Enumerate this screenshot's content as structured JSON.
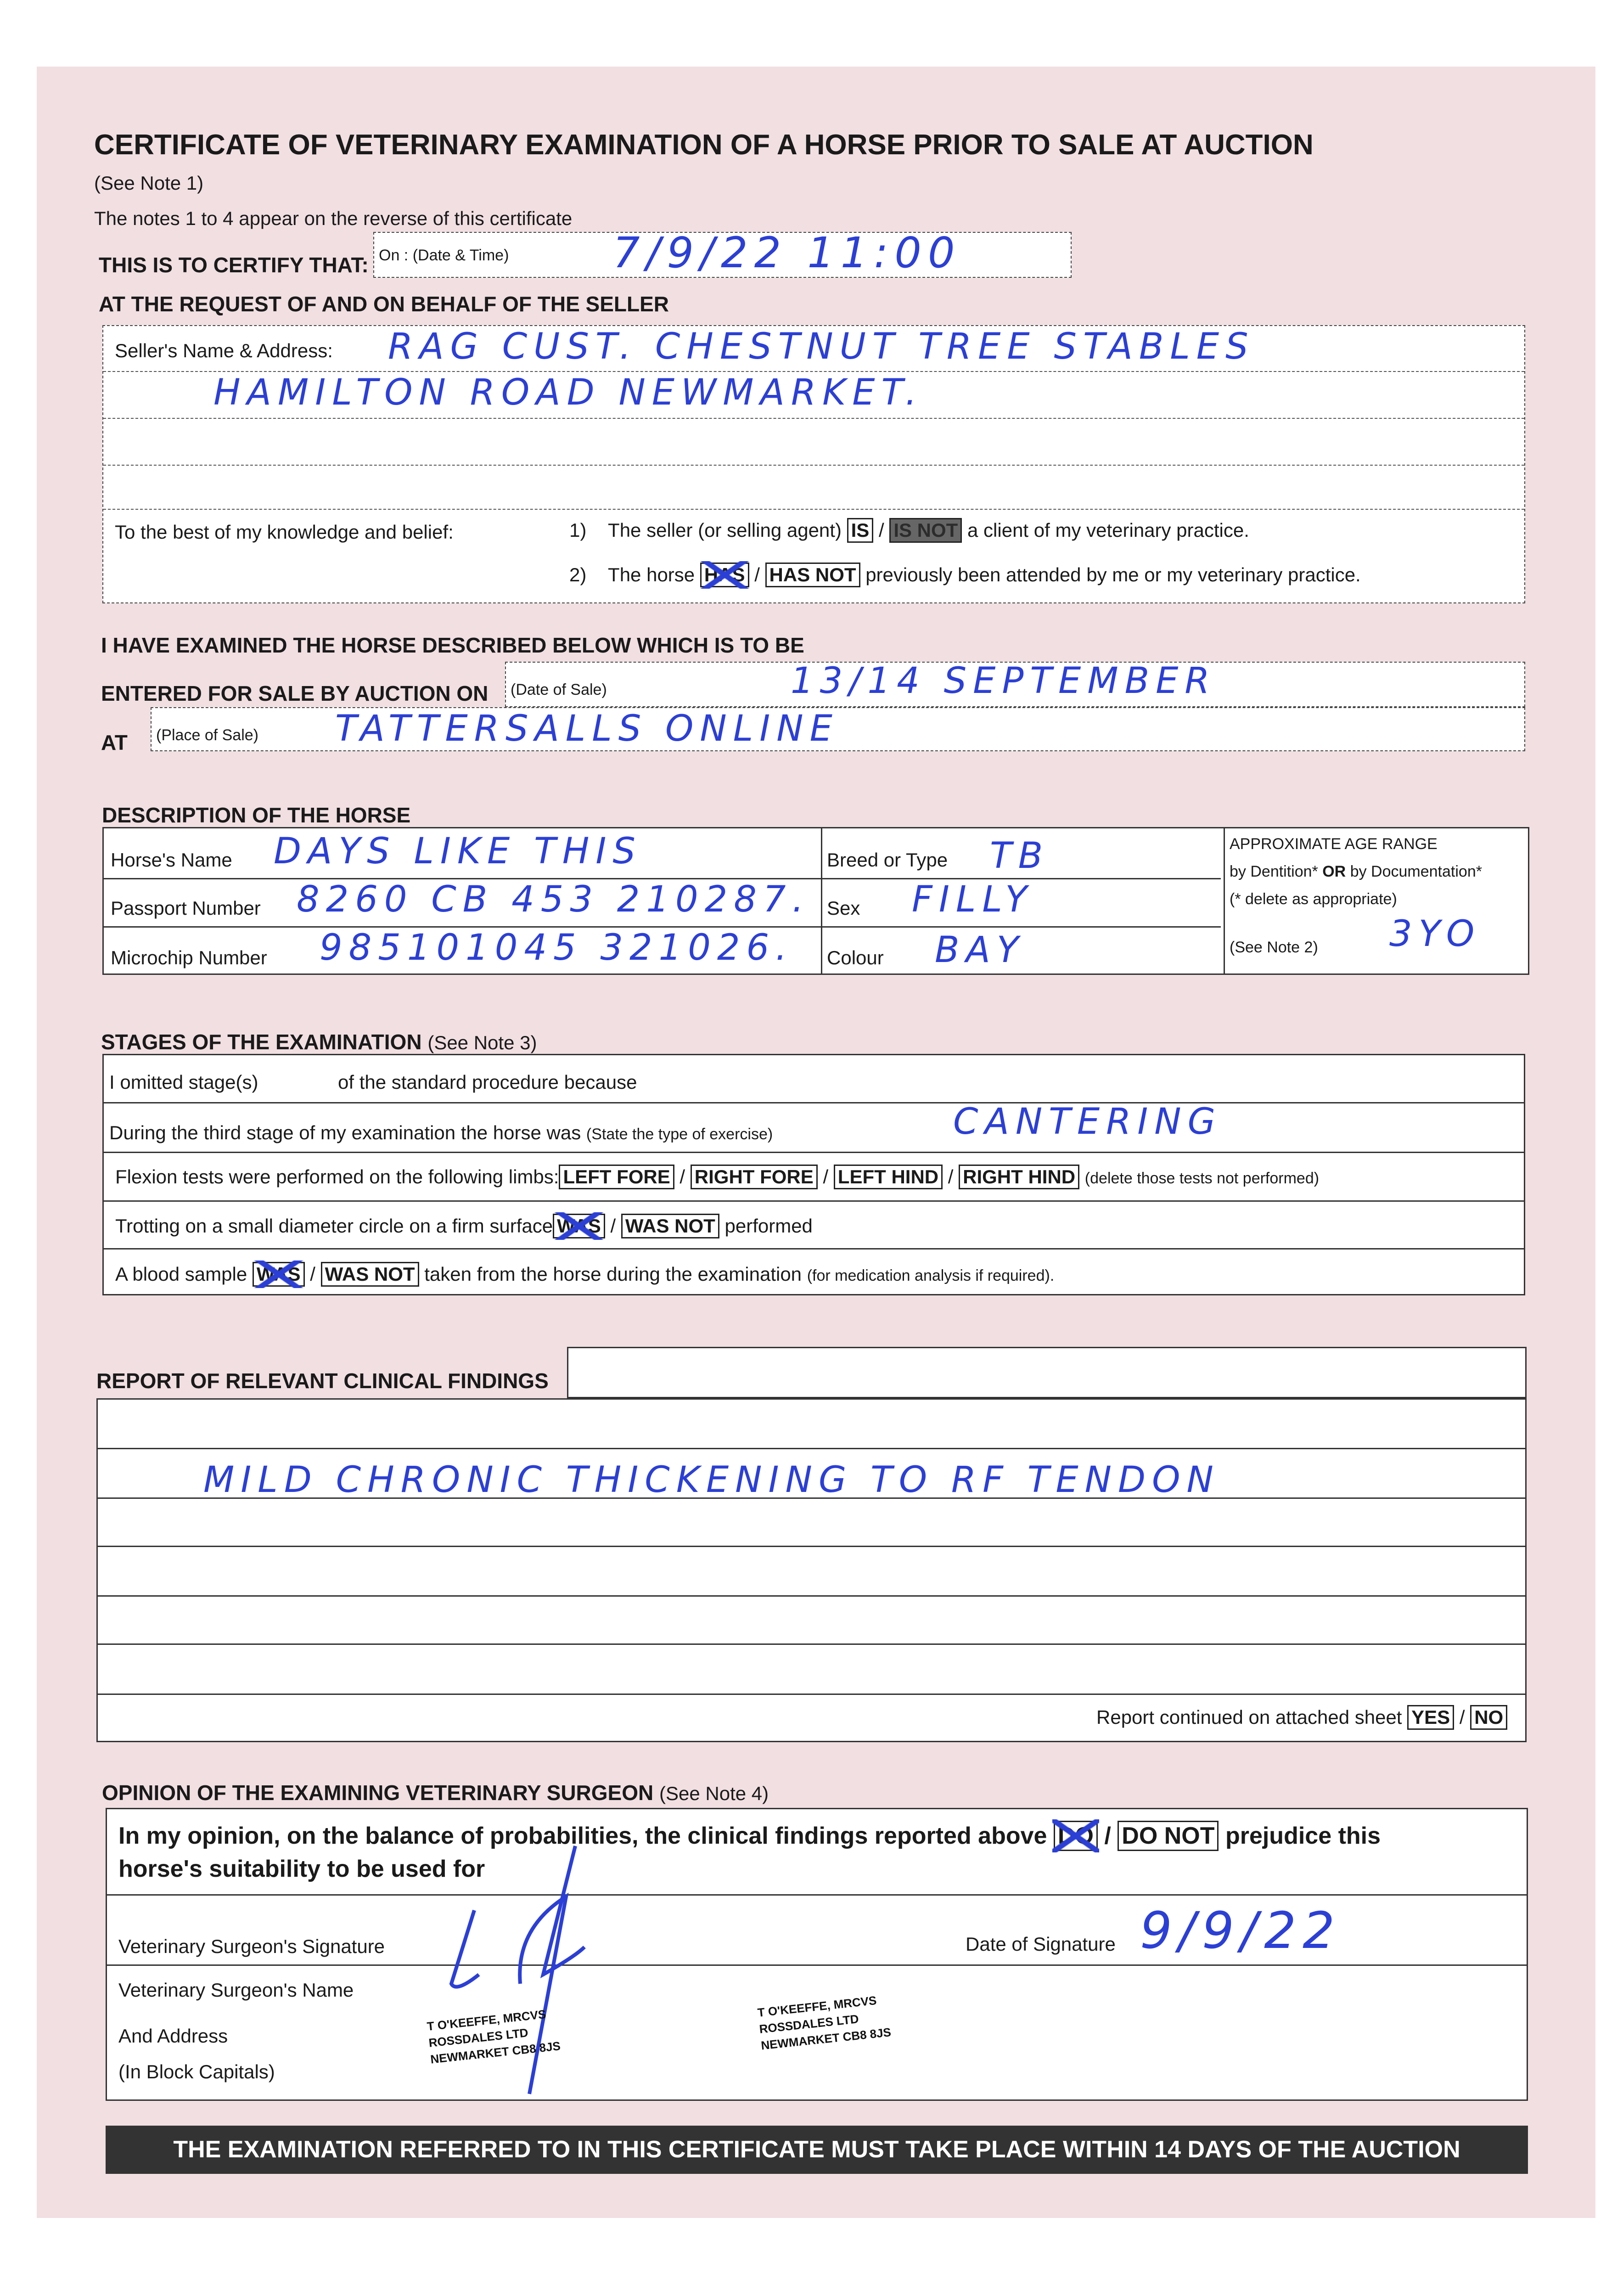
{
  "header": {
    "title": "CERTIFICATE OF VETERINARY EXAMINATION OF A HORSE PRIOR TO SALE AT AUCTION",
    "see_note": "(See Note 1)",
    "notes_line": "The notes 1 to 4 appear on the reverse of this certificate",
    "certify": "THIS IS TO CERTIFY THAT:",
    "date_time_label": "On : (Date & Time)",
    "date_time_value": "7/9/22   11:00",
    "request": "AT THE REQUEST OF AND ON BEHALF OF THE SELLER"
  },
  "seller": {
    "label": "Seller's Name & Address:",
    "line1": "RAG CUST.  CHESTNUT TREE STABLES",
    "line2": "HAMILTON  ROAD   NEWMARKET.",
    "knowledge": "To the best of my knowledge and belief:",
    "s1_num": "1)",
    "s1_pre": "The seller (or selling agent)",
    "s1_opt1": "IS",
    "sep": "/",
    "s1_opt2": "IS NOT",
    "s1_post": "a client of my veterinary practice.",
    "s2_num": "2)",
    "s2_pre": "The horse",
    "s2_opt1": "HAS",
    "s2_opt2": "HAS NOT",
    "s2_post": "previously been attended by me or my veterinary practice."
  },
  "sale": {
    "heading1": "I HAVE EXAMINED THE HORSE DESCRIBED BELOW WHICH IS TO BE",
    "heading2": "ENTERED FOR SALE BY AUCTION ON",
    "date_label": "(Date of Sale)",
    "date_value": "13/14 SEPTEMBER",
    "at": "AT",
    "place_label": "(Place of Sale)",
    "place_value": "TATTERSALLS  ONLINE"
  },
  "horse": {
    "heading": "DESCRIPTION OF THE HORSE",
    "name_label": "Horse's Name",
    "name_value": "DAYS LIKE THIS",
    "passport_label": "Passport Number",
    "passport_value": "8260 CB 453 210287.",
    "microchip_label": "Microchip Number",
    "microchip_value": "985101045 321026.",
    "breed_label": "Breed or Type",
    "breed_value": "TB",
    "sex_label": "Sex",
    "sex_value": "FILLY",
    "colour_label": "Colour",
    "colour_value": "BAY",
    "age_title": "APPROXIMATE AGE RANGE",
    "age_by1": "by Dentition*",
    "age_or": "OR",
    "age_by2": "by Documentation*",
    "age_delete": "(* delete as appropriate)",
    "age_note": "(See Note 2)",
    "age_value": "3YO"
  },
  "stages": {
    "heading": "STAGES OF THE EXAMINATION",
    "heading_note": "(See Note 3)",
    "r1a": "I omitted stage(s)",
    "r1b": "of the standard procedure because",
    "r2": "During the third stage of my examination the horse was",
    "r2_note": "(State the type of exercise)",
    "r2_value": "CANTERING",
    "r3": "Flexion tests were performed on the following limbs:",
    "limbs": [
      "LEFT FORE",
      "RIGHT FORE",
      "LEFT HIND",
      "RIGHT HIND"
    ],
    "r3_note": "(delete those tests not performed)",
    "r4": "Trotting on a small diameter circle on a firm surface",
    "r4_opt1": "WAS",
    "r4_opt2": "WAS NOT",
    "r4_post": "performed",
    "r5": "A blood sample",
    "r5_opt1": "WAS",
    "r5_opt2": "WAS NOT",
    "r5_post": "taken from the horse during the examination",
    "r5_note": "(for medication analysis if required)."
  },
  "report": {
    "heading": "REPORT OF RELEVANT CLINICAL FINDINGS",
    "finding": "MILD CHRONIC THICKENING TO RF TENDON",
    "continued": "Report continued on attached sheet",
    "yes": "YES",
    "no": "NO"
  },
  "opinion": {
    "heading": "OPINION OF THE EXAMINING VETERINARY SURGEON",
    "heading_note": "(See Note 4)",
    "text1": "In my opinion, on the balance of probabilities, the clinical findings reported above",
    "do": "DO",
    "do_not": "DO NOT",
    "text2": "prejudice this",
    "text3": "horse's suitability to be used for",
    "sig_label": "Veterinary Surgeon's Signature",
    "date_label": "Date of Signature",
    "date_value": "9/9/22",
    "name_label": "Veterinary Surgeon's Name",
    "addr_label": "And Address",
    "block_label": "(In Block Capitals)",
    "stamp": [
      "T O'KEEFFE, MRCVS",
      "ROSSDALES LTD",
      "NEWMARKET CB8 8JS"
    ]
  },
  "footer": {
    "banner": "THE EXAMINATION REFERRED TO IN THIS CERTIFICATE MUST TAKE PLACE WITHIN 14 DAYS OF THE AUCTION"
  },
  "colors": {
    "paper": "#f1dfe2",
    "ink": "#2b3fd6",
    "banner": "#333333"
  }
}
